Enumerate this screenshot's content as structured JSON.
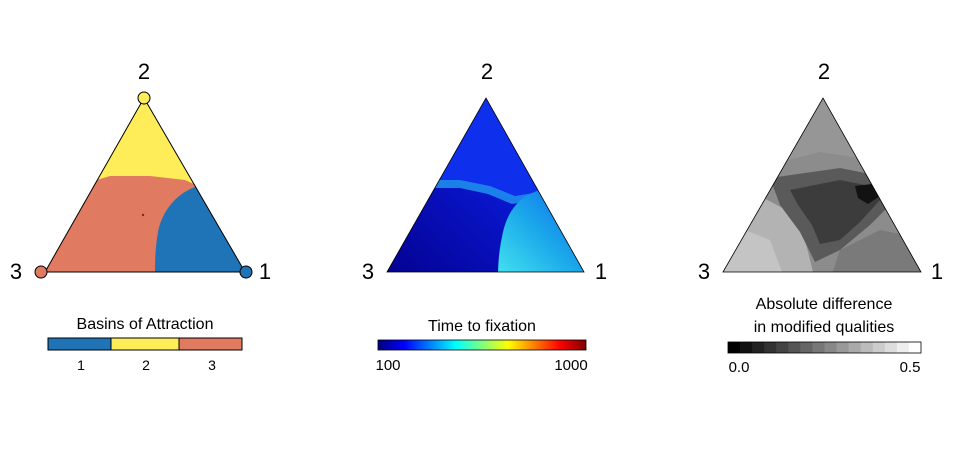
{
  "panels": [
    {
      "vertex_labels": {
        "top": "2",
        "left": "3",
        "right": "1"
      },
      "legend_title": "Basins of Attraction",
      "legend_labels": [
        "1",
        "2",
        "3"
      ]
    },
    {
      "vertex_labels": {
        "top": "2",
        "left": "3",
        "right": "1"
      },
      "legend_title": "Time to fixation",
      "tick_min": "100",
      "tick_max": "1000"
    },
    {
      "vertex_labels": {
        "top": "2",
        "left": "3",
        "right": "1"
      },
      "legend_title_line1": "Absolute difference",
      "legend_title_line2": "in modified qualities",
      "tick_min": "0.0",
      "tick_max": "0.5"
    }
  ],
  "chart_data": [
    {
      "type": "heatmap",
      "title": "",
      "coordinates": "ternary simplex",
      "vertices": [
        "1",
        "2",
        "3"
      ],
      "legend": {
        "title": "Basins of Attraction",
        "categories": [
          "1",
          "2",
          "3"
        ]
      },
      "basin_colors": {
        "1": "#1f73b7",
        "2": "#ffec59",
        "3": "#e07a60"
      },
      "basin_description": {
        "1": "right-lower region near vertex 1",
        "2": "upper region near vertex 2",
        "3": "large left region near vertex 3"
      }
    },
    {
      "type": "heatmap",
      "title": "",
      "coordinates": "ternary simplex",
      "vertices": [
        "1",
        "2",
        "3"
      ],
      "legend": {
        "title": "Time to fixation",
        "range": [
          100,
          1000
        ]
      },
      "colormap": [
        "#00007f",
        "#0000ff",
        "#00ffff",
        "#ffff00",
        "#ff0000",
        "#7f0000"
      ]
    },
    {
      "type": "heatmap",
      "title": "",
      "coordinates": "ternary simplex",
      "vertices": [
        "1",
        "2",
        "3"
      ],
      "legend": {
        "title": "Absolute difference in modified qualities",
        "range": [
          0.0,
          0.5
        ]
      },
      "colormap": [
        "#000000",
        "#ffffff"
      ]
    }
  ]
}
